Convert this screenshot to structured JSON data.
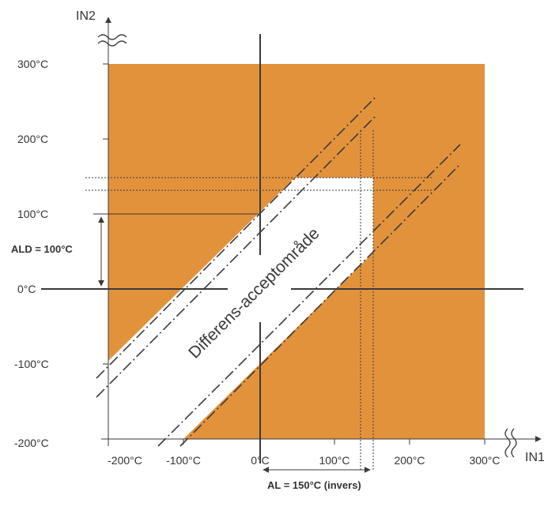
{
  "axes": {
    "x_name": "IN1",
    "y_name": "IN2"
  },
  "y_ticks": [
    "300°C",
    "200°C",
    "100°C",
    "0°C",
    "-100°C",
    "-200°C"
  ],
  "x_ticks": [
    "-200°C",
    "-100°C",
    "0°C",
    "100°C",
    "200°C",
    "300°C"
  ],
  "zone_label": "Differens-acceptområde",
  "ald_label": "ALD = 100°C",
  "al_label": "AL = 150°C (invers)",
  "colors": {
    "fault_area": "#e3923c",
    "acceptance_area": "#ffffff",
    "lines": "#3a3a3a"
  }
}
